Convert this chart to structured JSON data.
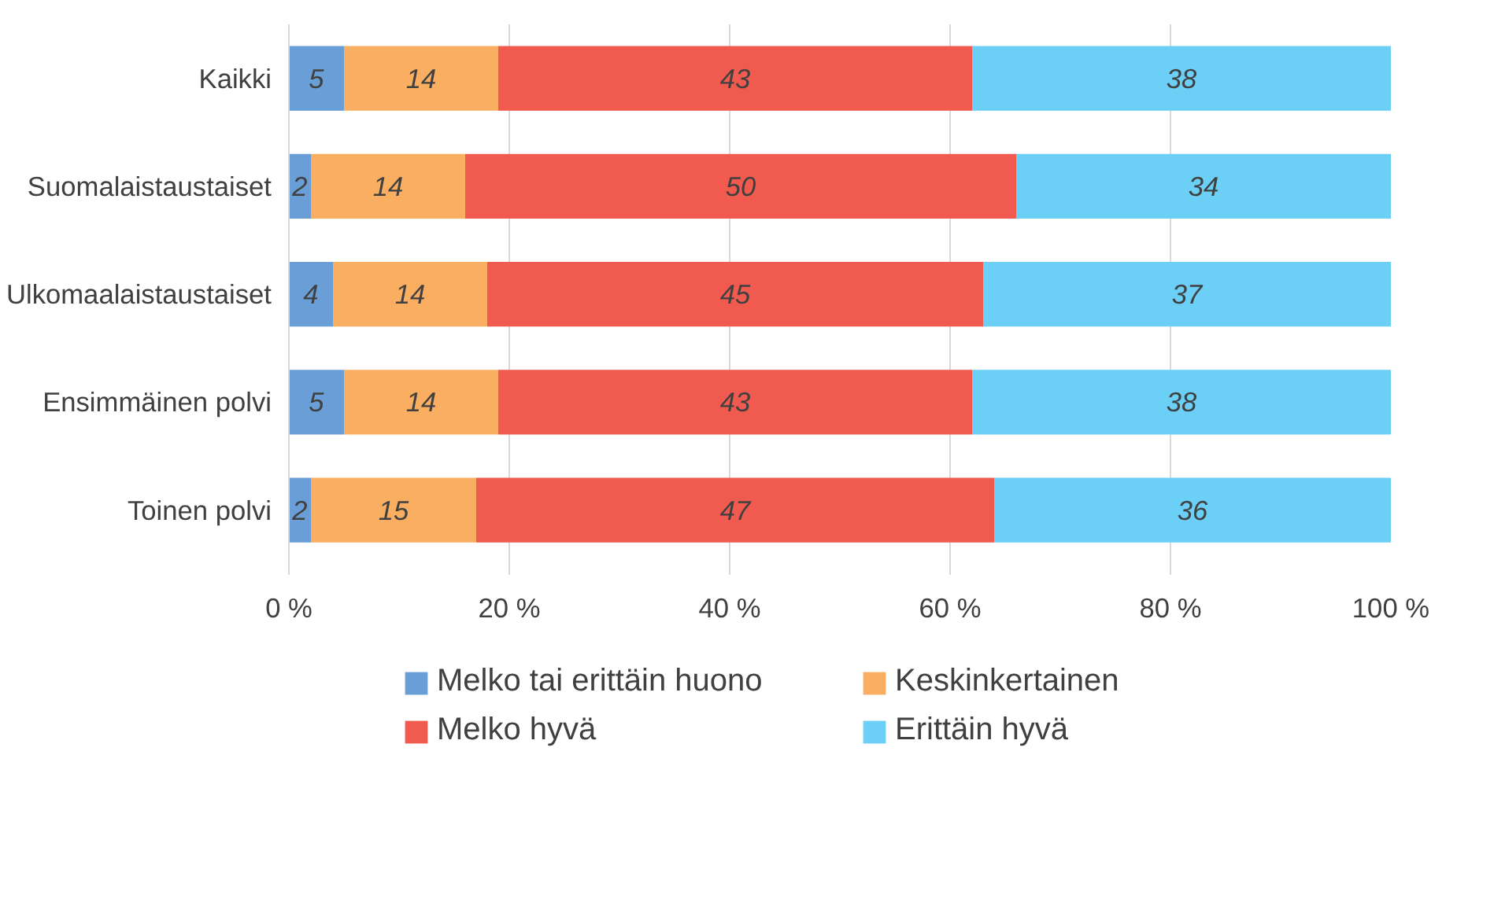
{
  "chart_data": {
    "type": "bar",
    "orientation": "horizontal",
    "stacked": true,
    "categories": [
      "Kaikki",
      "Suomalaistaustaiset",
      "Ulkomaalaistaustaiset",
      "Ensimmäinen polvi",
      "Toinen polvi"
    ],
    "series": [
      {
        "name": "Melko tai erittäin huono",
        "color": "#6a9ed6",
        "values": [
          5,
          2,
          4,
          5,
          2
        ]
      },
      {
        "name": "Keskinkertainen",
        "color": "#f9ae61",
        "values": [
          14,
          14,
          14,
          14,
          15
        ]
      },
      {
        "name": "Melko hyvä",
        "color": "#f15b4f",
        "values": [
          43,
          50,
          45,
          43,
          47
        ]
      },
      {
        "name": "Erittäin hyvä",
        "color": "#6ccff6",
        "values": [
          38,
          34,
          37,
          38,
          36
        ]
      }
    ],
    "xlim": [
      0,
      100
    ],
    "xticks": [
      {
        "value": 0,
        "label": "0 %"
      },
      {
        "value": 20,
        "label": "20 %"
      },
      {
        "value": 40,
        "label": "40 %"
      },
      {
        "value": 60,
        "label": "60 %"
      },
      {
        "value": 80,
        "label": "80 %"
      },
      {
        "value": 100,
        "label": "100 %"
      }
    ],
    "grid": "x",
    "legend": "bottom",
    "data_labels": true
  }
}
